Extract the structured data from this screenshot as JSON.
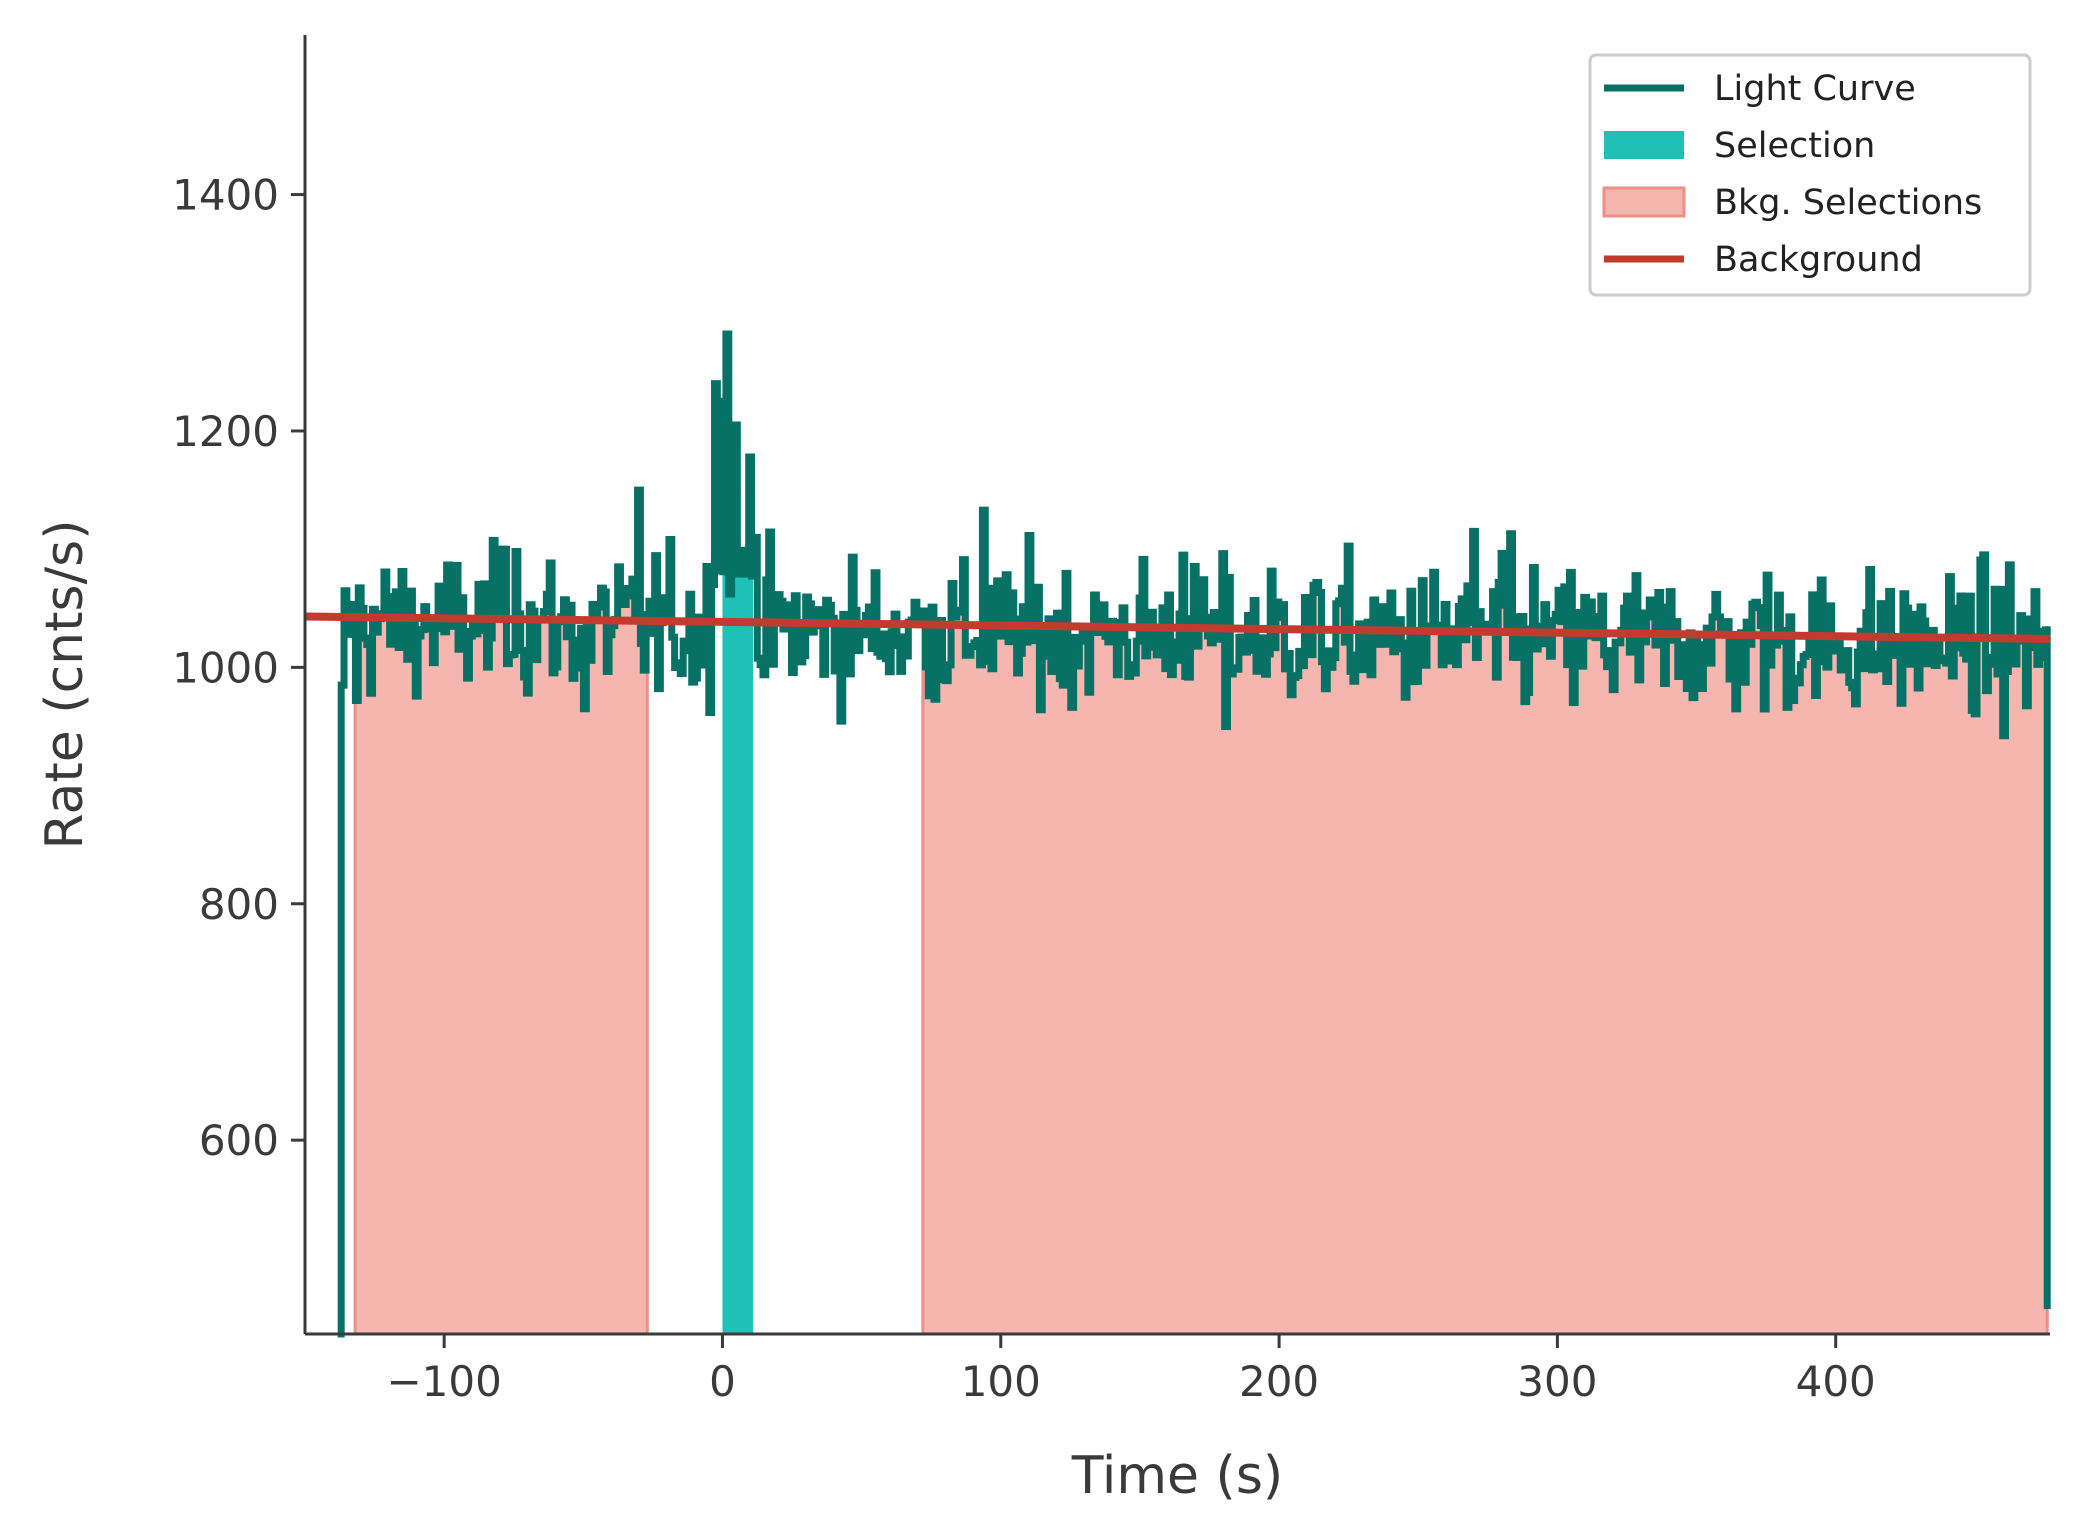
{
  "chart_data": {
    "type": "line",
    "title": "",
    "xlabel": "Time (s)",
    "ylabel": "Rate (cnts/s)",
    "xlim": [
      -150,
      477
    ],
    "ylim": [
      436,
      1535
    ],
    "x_ticks": [
      -100,
      0,
      100,
      200,
      300,
      400
    ],
    "x_tick_labels": [
      "−100",
      "0",
      "100",
      "200",
      "300",
      "400"
    ],
    "y_ticks": [
      600,
      800,
      1000,
      1200,
      1400
    ],
    "y_tick_labels": [
      "600",
      "800",
      "1000",
      "1200",
      "1400"
    ],
    "grid": false,
    "legend_position": "top-right",
    "colors": {
      "light_curve": "#077166",
      "selection": "#20c0b6",
      "bkg_fill": "#f5b6b0",
      "bkg_edge": "#ee8f86",
      "background": "#c23b2e",
      "axis": "#3a3a3a"
    },
    "legend": [
      {
        "label": "Light Curve",
        "kind": "line",
        "color": "#077166"
      },
      {
        "label": "Selection",
        "kind": "patch",
        "color": "#20c0b6"
      },
      {
        "label": "Bkg. Selections",
        "kind": "patch",
        "color": "#f5b6b0",
        "edge": "#ee8f86"
      },
      {
        "label": "Background",
        "kind": "line",
        "color": "#c23b2e"
      }
    ],
    "series": [
      {
        "name": "Light Curve",
        "style": "step",
        "bin_width": 1.024,
        "x_start": -137,
        "x_end": 476,
        "baseline": 1035,
        "noise_sd": 30,
        "start_drop": 436,
        "end_drop": 460,
        "spikes": [
          {
            "x": -137,
            "y": 985
          },
          {
            "x": -132,
            "y": 972
          },
          {
            "x": -80,
            "y": 1100
          },
          {
            "x": -75,
            "y": 1098
          },
          {
            "x": -50,
            "y": 965
          },
          {
            "x": -38,
            "y": 1085
          },
          {
            "x": -30,
            "y": 1150
          },
          {
            "x": -3,
            "y": 1240
          },
          {
            "x": -1,
            "y": 1225
          },
          {
            "x": 1,
            "y": 1282
          },
          {
            "x": 4,
            "y": 1205
          },
          {
            "x": 6,
            "y": 960
          },
          {
            "x": 9,
            "y": 1178
          },
          {
            "x": 11,
            "y": 1110
          },
          {
            "x": 55,
            "y": 1080
          },
          {
            "x": 93,
            "y": 1133
          },
          {
            "x": 165,
            "y": 1095
          },
          {
            "x": 180,
            "y": 950
          },
          {
            "x": 270,
            "y": 1115
          },
          {
            "x": 283,
            "y": 1113
          },
          {
            "x": 375,
            "y": 1078
          }
        ]
      },
      {
        "name": "Background",
        "style": "line",
        "x": [
          -150,
          477
        ],
        "y": [
          1043,
          1024
        ]
      }
    ],
    "selection": {
      "x0": 0,
      "x1": 11
    },
    "bkg_selections": [
      {
        "x0": -132,
        "x1": -27
      },
      {
        "x0": 72,
        "x1": 476
      }
    ]
  }
}
